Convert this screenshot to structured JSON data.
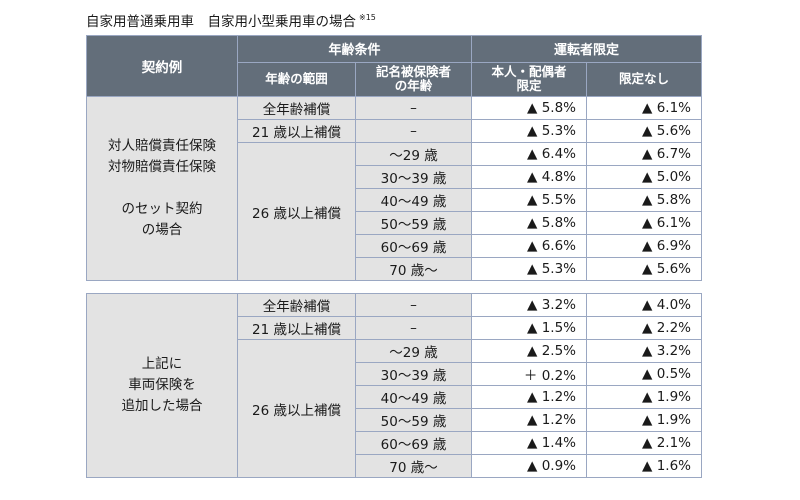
{
  "caption": {
    "text": "自家用普通乗用車　自家用小型乗用車の場合",
    "note": "※15"
  },
  "header": {
    "contract_example": "契約例",
    "age_conditions": "年齢条件",
    "driver_limit": "運転者限定",
    "age_range": "年齢の範囲",
    "named_insured_age_line1": "記名被保険者",
    "named_insured_age_line2": "の年齢",
    "self_spouse_line1": "本人・配偶者",
    "self_spouse_line2": "限定",
    "no_limit": "限定なし"
  },
  "blocks": [
    {
      "label_lines": [
        "対人賠償責任保険",
        "対物賠償責任保険",
        "",
        "のセット契約",
        "の場合"
      ],
      "range_all": "全年齢補償",
      "range_21": "21 歳以上補償",
      "range_26": "26 歳以上補償",
      "rows": [
        {
          "age": "–",
          "self_spouse": "▲ 5.8%",
          "no_limit": "▲ 6.1%"
        },
        {
          "age": "–",
          "self_spouse": "▲ 5.3%",
          "no_limit": "▲ 5.6%"
        },
        {
          "age": "～29 歳",
          "self_spouse": "▲ 6.4%",
          "no_limit": "▲ 6.7%"
        },
        {
          "age": "30～39 歳",
          "self_spouse": "▲ 4.8%",
          "no_limit": "▲ 5.0%"
        },
        {
          "age": "40～49 歳",
          "self_spouse": "▲ 5.5%",
          "no_limit": "▲ 5.8%"
        },
        {
          "age": "50～59 歳",
          "self_spouse": "▲ 5.8%",
          "no_limit": "▲ 6.1%"
        },
        {
          "age": "60～69 歳",
          "self_spouse": "▲ 6.6%",
          "no_limit": "▲ 6.9%"
        },
        {
          "age": "70 歳～",
          "self_spouse": "▲ 5.3%",
          "no_limit": "▲ 5.6%"
        }
      ]
    },
    {
      "label_lines": [
        "上記に",
        "車両保険を",
        "追加した場合"
      ],
      "range_all": "全年齢補償",
      "range_21": "21 歳以上補償",
      "range_26": "26 歳以上補償",
      "rows": [
        {
          "age": "–",
          "self_spouse": "▲ 3.2%",
          "no_limit": "▲ 4.0%"
        },
        {
          "age": "–",
          "self_spouse": "▲ 1.5%",
          "no_limit": "▲ 2.2%"
        },
        {
          "age": "～29 歳",
          "self_spouse": "▲ 2.5%",
          "no_limit": "▲ 3.2%"
        },
        {
          "age": "30～39 歳",
          "self_spouse": "＋ 0.2%",
          "no_limit": "▲ 0.5%"
        },
        {
          "age": "40～49 歳",
          "self_spouse": "▲ 1.2%",
          "no_limit": "▲ 1.9%"
        },
        {
          "age": "50～59 歳",
          "self_spouse": "▲ 1.2%",
          "no_limit": "▲ 1.9%"
        },
        {
          "age": "60～69 歳",
          "self_spouse": "▲ 1.4%",
          "no_limit": "▲ 2.1%"
        },
        {
          "age": "70 歳～",
          "self_spouse": "▲ 0.9%",
          "no_limit": "▲ 1.6%"
        }
      ]
    }
  ]
}
